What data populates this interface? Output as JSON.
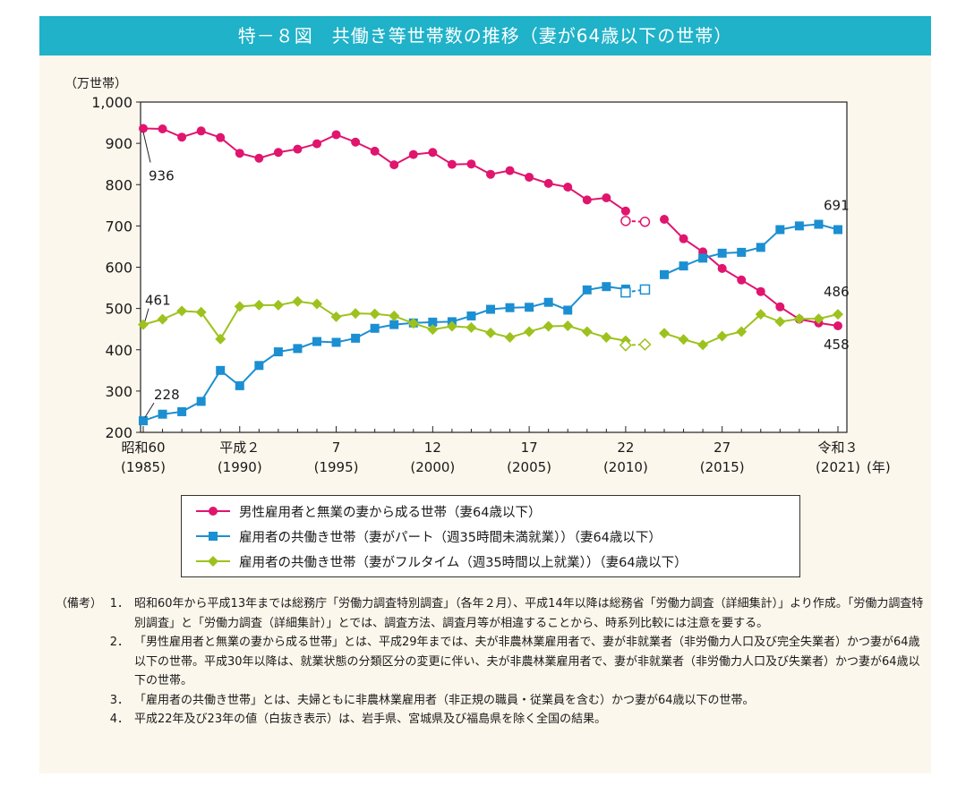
{
  "title": "特－８図　共働き等世帯数の推移（妻が64歳以下の世帯）",
  "chart_data": {
    "type": "line",
    "ylabel": "（万世帯）",
    "ylim": [
      200,
      1000
    ],
    "yticks": [
      "200",
      "300",
      "400",
      "500",
      "600",
      "700",
      "800",
      "900",
      "1,000"
    ],
    "xlim": [
      1985,
      2021
    ],
    "xticks": [
      {
        "year": 1985,
        "top": "昭和60",
        "bottom": "(1985)"
      },
      {
        "year": 1990,
        "top": "平成２",
        "bottom": "(1990)"
      },
      {
        "year": 1995,
        "top": "7",
        "bottom": "(1995)"
      },
      {
        "year": 2000,
        "top": "12",
        "bottom": "(2000)"
      },
      {
        "year": 2005,
        "top": "17",
        "bottom": "(2005)"
      },
      {
        "year": 2010,
        "top": "22",
        "bottom": "(2010)"
      },
      {
        "year": 2015,
        "top": "27",
        "bottom": "(2015)"
      },
      {
        "year": 2021,
        "top": "令和３",
        "bottom": "(2021)"
      }
    ],
    "x_unit": "(年)",
    "series": [
      {
        "name": "男性雇用者と無業の妻から成る世帯（妻64歳以下）",
        "color": "#e0156e",
        "marker": "circle",
        "segments": [
          {
            "x": [
              1985,
              1986,
              1987,
              1988,
              1989,
              1990,
              1991,
              1992,
              1993,
              1994,
              1995,
              1996,
              1997,
              1998,
              1999,
              2000,
              2001,
              2002,
              2003,
              2004,
              2005,
              2006,
              2007,
              2008,
              2009,
              2010
            ],
            "y": [
              936,
              935,
              915,
              930,
              914,
              876,
              864,
              878,
              886,
              899,
              921,
              903,
              881,
              848,
              873,
              878,
              849,
              850,
              825,
              834,
              818,
              803,
              794,
              763,
              768,
              736
            ]
          },
          {
            "x": [
              2010,
              2011
            ],
            "y": [
              712,
              710
            ],
            "hollow": true
          },
          {
            "x": [
              2012,
              2013,
              2014,
              2015,
              2016,
              2017,
              2018,
              2019,
              2020,
              2021
            ],
            "y": [
              716,
              669,
              637,
              597,
              569,
              541,
              504,
              474,
              465,
              458
            ]
          }
        ]
      },
      {
        "name": "雇用者の共働き世帯（妻がパート（週35時間未満就業））（妻64歳以下）",
        "color": "#1b8fd1",
        "marker": "square",
        "segments": [
          {
            "x": [
              1985,
              1986,
              1987,
              1988,
              1989,
              1990,
              1991,
              1992,
              1993,
              1994,
              1995,
              1996,
              1997,
              1998,
              1999,
              2000,
              2001,
              2002,
              2003,
              2004,
              2005,
              2006,
              2007,
              2008,
              2009,
              2010
            ],
            "y": [
              228,
              244,
              250,
              275,
              350,
              313,
              362,
              395,
              403,
              420,
              418,
              428,
              452,
              461,
              465,
              467,
              468,
              482,
              498,
              502,
              503,
              515,
              496,
              545,
              553,
              547
            ]
          },
          {
            "x": [
              2010,
              2011
            ],
            "y": [
              539,
              546
            ],
            "hollow": true
          },
          {
            "x": [
              2012,
              2013,
              2014,
              2015,
              2016,
              2017,
              2018,
              2019,
              2020,
              2021
            ],
            "y": [
              582,
              603,
              622,
              634,
              636,
              648,
              691,
              700,
              704,
              691
            ]
          }
        ]
      },
      {
        "name": "雇用者の共働き世帯（妻がフルタイム（週35時間以上就業））（妻64歳以下）",
        "color": "#9dc21d",
        "marker": "diamond",
        "segments": [
          {
            "x": [
              1985,
              1986,
              1987,
              1988,
              1989,
              1990,
              1991,
              1992,
              1993,
              1994,
              1995,
              1996,
              1997,
              1998,
              1999,
              2000,
              2001,
              2002,
              2003,
              2004,
              2005,
              2006,
              2007,
              2008,
              2009,
              2010
            ],
            "y": [
              461,
              474,
              494,
              491,
              426,
              505,
              508,
              508,
              517,
              511,
              480,
              488,
              487,
              482,
              464,
              449,
              457,
              454,
              441,
              430,
              444,
              457,
              458,
              444,
              430,
              422
            ]
          },
          {
            "x": [
              2010,
              2011
            ],
            "y": [
              411,
              413
            ],
            "hollow": true
          },
          {
            "x": [
              2012,
              2013,
              2014,
              2015,
              2016,
              2017,
              2018,
              2019,
              2020,
              2021
            ],
            "y": [
              440,
              425,
              412,
              433,
              444,
              486,
              468,
              475,
              475,
              486
            ]
          }
        ]
      }
    ],
    "annotations": [
      "936",
      "228",
      "461",
      "691",
      "486",
      "458"
    ]
  },
  "legend": {
    "items": [
      "男性雇用者と無業の妻から成る世帯（妻64歳以下）",
      "雇用者の共働き世帯（妻がパート（週35時間未満就業））（妻64歳以下）",
      "雇用者の共働き世帯（妻がフルタイム（週35時間以上就業））（妻64歳以下）"
    ]
  },
  "notes": {
    "head": "（備考）",
    "items": [
      {
        "num": "1．",
        "text": "昭和60年から平成13年までは総務庁「労働力調査特別調査」（各年２月）、平成14年以降は総務省「労働力調査（詳細集計）」より作成。「労働力調査特別調査」と「労働力調査（詳細集計）」とでは、調査方法、調査月等が相違することから、時系列比較には注意を要する。"
      },
      {
        "num": "2．",
        "text": "「男性雇用者と無業の妻から成る世帯」とは、平成29年までは、夫が非農林業雇用者で、妻が非就業者（非労働力人口及び完全失業者）かつ妻が64歳以下の世帯。平成30年以降は、就業状態の分類区分の変更に伴い、夫が非農林業雇用者で、妻が非就業者（非労働力人口及び失業者）かつ妻が64歳以下の世帯。"
      },
      {
        "num": "3．",
        "text": "「雇用者の共働き世帯」とは、夫婦ともに非農林業雇用者（非正規の職員・従業員を含む）かつ妻が64歳以下の世帯。"
      },
      {
        "num": "4．",
        "text": "平成22年及び23年の値（白抜き表示）は、岩手県、宮城県及び福島県を除く全国の結果。"
      }
    ]
  }
}
